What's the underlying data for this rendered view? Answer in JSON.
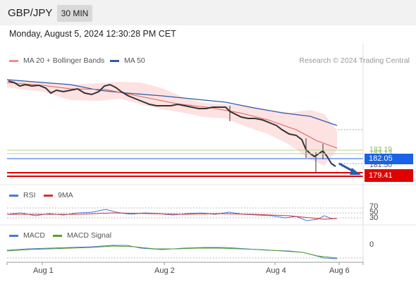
{
  "header": {
    "symbol": "GBP/JPY",
    "interval": "30 MIN"
  },
  "datetime": "Monday, August 5, 2024 12:30:28 PM CET",
  "legend": {
    "ma20_label": "MA 20 + Bollinger Bands",
    "ma50_label": "MA 50",
    "research": "Research © 2024 Trading Central"
  },
  "price_axis": {
    "levels_green": "183.19",
    "levels_green_b": "183.13",
    "price_current": "182.05",
    "price_hidden": "181.50",
    "price_red": "179.41"
  },
  "rsi": {
    "label": "RSI",
    "signal_label": "9MA",
    "levels": [
      "70",
      "50",
      "30"
    ]
  },
  "macd": {
    "label": "MACD",
    "signal_label": "MACD Signal",
    "zero": "0"
  },
  "x_axis": {
    "labels": [
      "Aug 1",
      "Aug 2",
      "Aug 4",
      "Aug 6"
    ]
  },
  "colors": {
    "ma20": "#f28b8b",
    "ma50": "#2e5aa8",
    "bollinger_fill": "#fde2e2",
    "current_price": "#1a62e6",
    "red_level": "#e00000",
    "green_level": "#8dbb5a",
    "rsi": "#4a78d8",
    "rsi_signal": "#d83030",
    "macd": "#4a78d8",
    "macd_signal": "#5aa02a"
  }
}
